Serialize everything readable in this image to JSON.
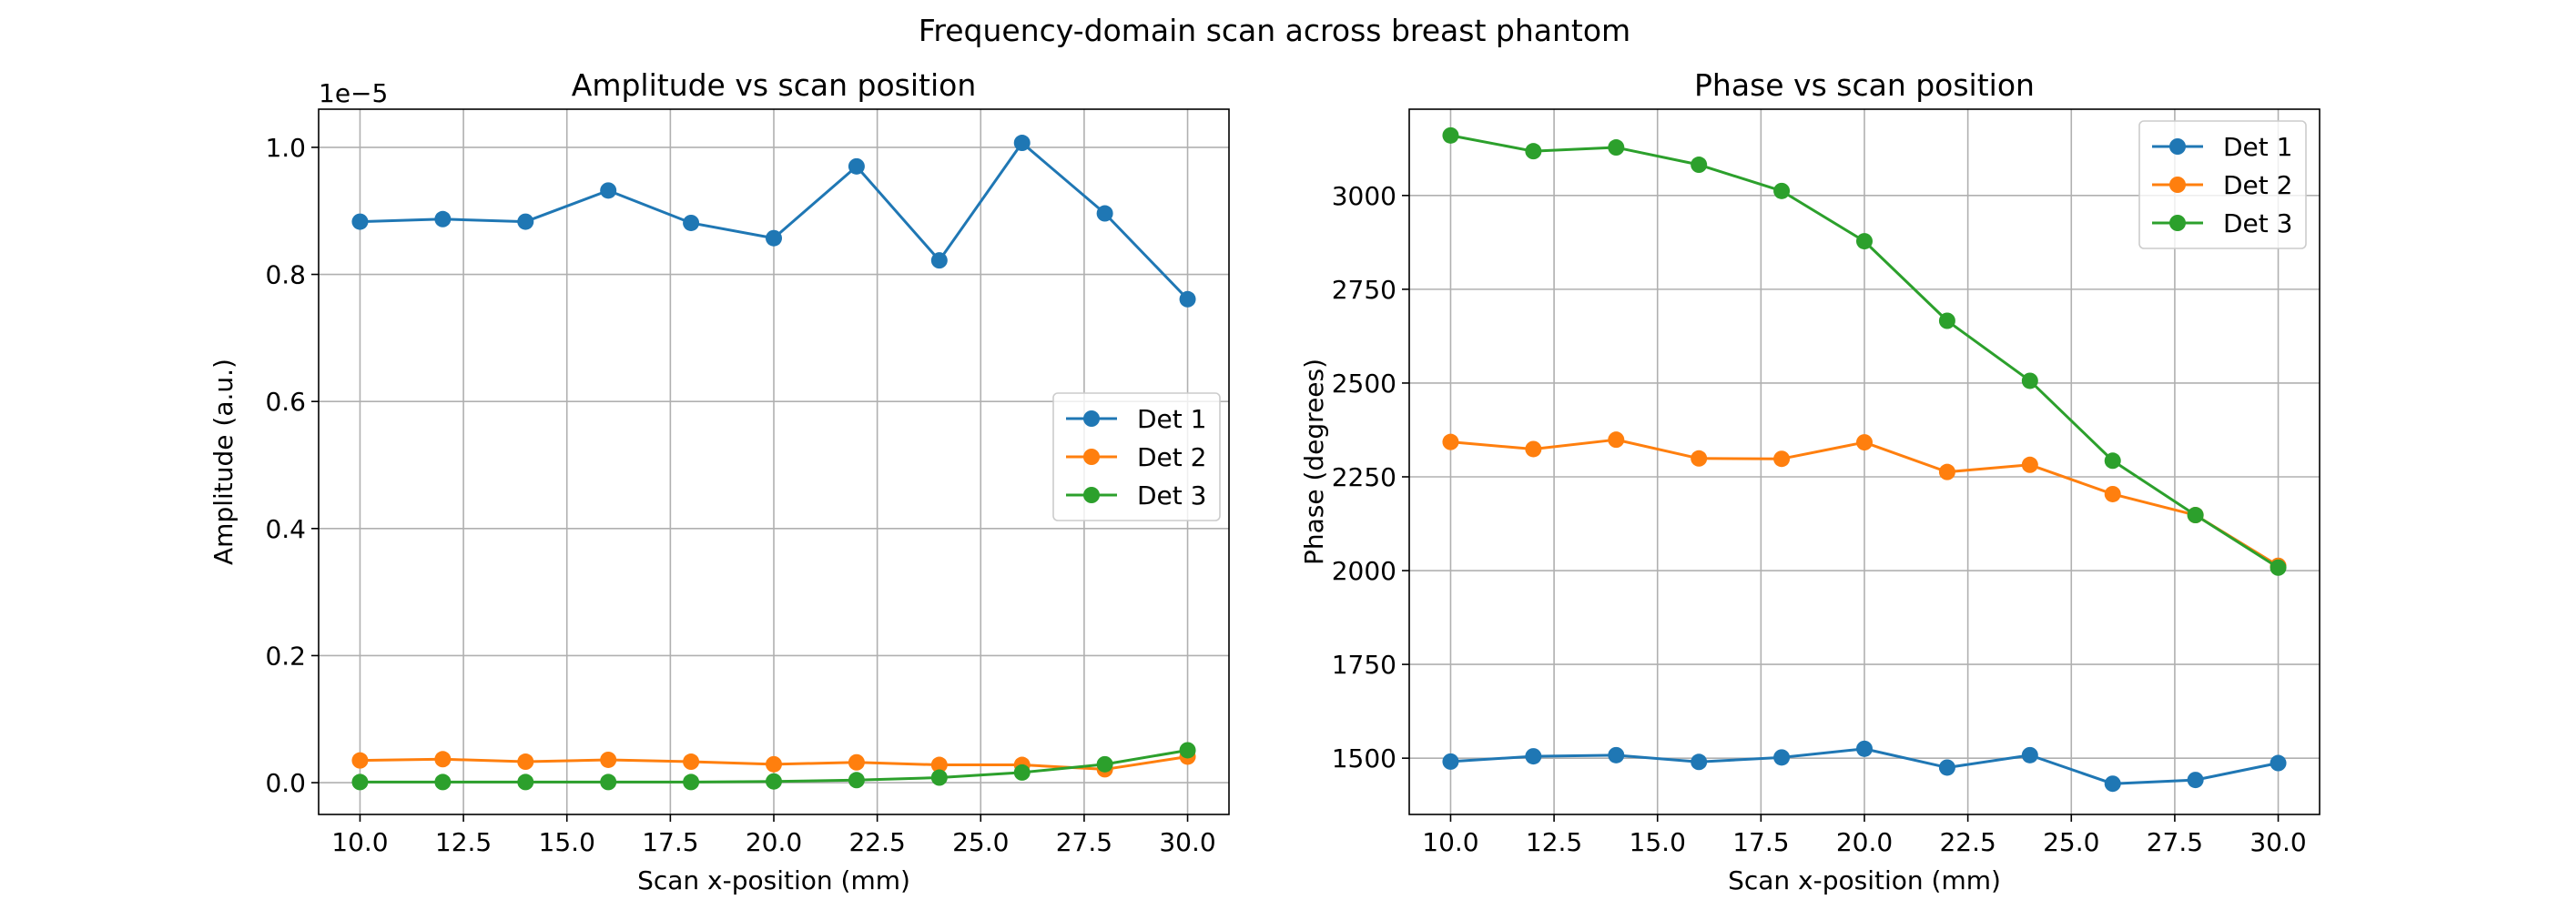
{
  "figure": {
    "suptitle": "Frequency-domain scan across breast phantom"
  },
  "chart_data": [
    {
      "type": "line",
      "title": "Amplitude vs scan position",
      "xlabel": "Scan x-position (mm)",
      "ylabel": "Amplitude (a.u.)",
      "offset_text": "1e−5",
      "xlim": [
        9.0,
        31.0
      ],
      "ylim": [
        -0.05,
        1.06
      ],
      "xticks": [
        10.0,
        12.5,
        15.0,
        17.5,
        20.0,
        22.5,
        25.0,
        27.5,
        30.0
      ],
      "xtick_labels": [
        "10.0",
        "12.5",
        "15.0",
        "17.5",
        "20.0",
        "22.5",
        "25.0",
        "27.5",
        "30.0"
      ],
      "yticks": [
        0.0,
        0.2,
        0.4,
        0.6,
        0.8,
        1.0
      ],
      "ytick_labels": [
        "0.0",
        "0.2",
        "0.4",
        "0.6",
        "0.8",
        "1.0"
      ],
      "grid": true,
      "legend_position": "center right",
      "x": [
        10,
        12,
        14,
        16,
        18,
        20,
        22,
        24,
        26,
        28,
        30
      ],
      "series": [
        {
          "name": "Det 1",
          "color": "#1f77b4",
          "values": [
            0.883,
            0.887,
            0.883,
            0.932,
            0.881,
            0.857,
            0.97,
            0.822,
            1.007,
            0.896,
            0.761
          ]
        },
        {
          "name": "Det 2",
          "color": "#ff7f0e",
          "values": [
            0.035,
            0.037,
            0.033,
            0.036,
            0.033,
            0.029,
            0.032,
            0.028,
            0.028,
            0.021,
            0.041
          ]
        },
        {
          "name": "Det 3",
          "color": "#2ca02c",
          "values": [
            0.001,
            0.001,
            0.001,
            0.001,
            0.001,
            0.002,
            0.004,
            0.008,
            0.016,
            0.029,
            0.051
          ]
        }
      ]
    },
    {
      "type": "line",
      "title": "Phase vs scan position",
      "xlabel": "Scan x-position (mm)",
      "ylabel": "Phase (degrees)",
      "offset_text": "",
      "xlim": [
        9.0,
        31.0
      ],
      "ylim": [
        1350,
        3230
      ],
      "xticks": [
        10.0,
        12.5,
        15.0,
        17.5,
        20.0,
        22.5,
        25.0,
        27.5,
        30.0
      ],
      "xtick_labels": [
        "10.0",
        "12.5",
        "15.0",
        "17.5",
        "20.0",
        "22.5",
        "25.0",
        "27.5",
        "30.0"
      ],
      "yticks": [
        1500,
        1750,
        2000,
        2250,
        2500,
        2750,
        3000
      ],
      "ytick_labels": [
        "1500",
        "1750",
        "2000",
        "2250",
        "2500",
        "2750",
        "3000"
      ],
      "grid": true,
      "legend_position": "upper right",
      "x": [
        10,
        12,
        14,
        16,
        18,
        20,
        22,
        24,
        26,
        28,
        30
      ],
      "series": [
        {
          "name": "Det 1",
          "color": "#1f77b4",
          "values": [
            1491,
            1505,
            1508,
            1490,
            1502,
            1525,
            1475,
            1508,
            1432,
            1442,
            1487
          ]
        },
        {
          "name": "Det 2",
          "color": "#ff7f0e",
          "values": [
            2343,
            2324,
            2349,
            2299,
            2298,
            2342,
            2263,
            2282,
            2204,
            2148,
            2013
          ]
        },
        {
          "name": "Det 3",
          "color": "#2ca02c",
          "values": [
            3160,
            3118,
            3128,
            3082,
            3012,
            2878,
            2666,
            2506,
            2293,
            2148,
            2008
          ]
        }
      ]
    }
  ]
}
